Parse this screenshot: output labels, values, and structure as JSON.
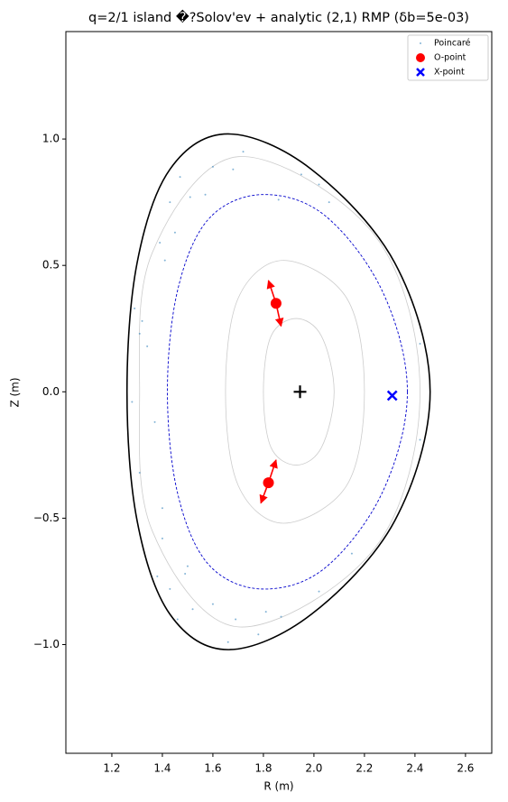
{
  "chart_data": {
    "type": "scatter",
    "title": "q=2/1 island �?Solov'ev + analytic (2,1) RMP  (δb=5e-03)",
    "x_label": "R (m)",
    "y_label": "Z (m)",
    "xlim": [
      1.018,
      2.704
    ],
    "ylim": [
      -1.43,
      1.425
    ],
    "xticks": [
      1.2,
      1.4,
      1.6,
      1.8,
      {
        "value": 2.0,
        "label": "2.0"
      },
      2.2,
      2.4,
      2.6
    ],
    "yticks": [
      {
        "value": -1.0,
        "label": "−1.0"
      },
      {
        "value": -0.5,
        "label": "−0.5"
      },
      {
        "value": 0.0,
        "label": "0.0"
      },
      0.5,
      {
        "value": 1.0,
        "label": "1.0"
      }
    ],
    "legend": "upper right",
    "boundary": {
      "color": "#000000",
      "x": [
        2.46,
        2.32,
        1.99,
        1.66,
        1.43,
        1.3,
        1.26,
        1.3,
        1.43,
        1.66,
        1.99,
        2.32
      ],
      "y": [
        0,
        0.51,
        0.88,
        1.02,
        0.88,
        0.51,
        0,
        -0.51,
        -0.88,
        -1.02,
        -0.88,
        -0.51
      ]
    },
    "q2_surface": {
      "color": "#0000cc",
      "x": [
        2.37,
        2.27,
        2.04,
        1.79,
        1.58,
        1.46,
        1.42,
        1.46,
        1.58,
        1.79,
        2.04,
        2.27
      ],
      "y": [
        0,
        0.4,
        0.7,
        0.78,
        0.68,
        0.4,
        0,
        -0.4,
        -0.68,
        -0.78,
        -0.7,
        -0.4
      ]
    },
    "contours": {
      "color": "#cccccc",
      "lines": [
        {
          "x": [
            2.08,
            2.03,
            1.93,
            1.83,
            1.8,
            1.83,
            1.93,
            2.03
          ],
          "y": [
            0,
            0.22,
            0.29,
            0.22,
            0,
            -0.22,
            -0.29,
            -0.22
          ]
        },
        {
          "x": [
            2.2,
            2.13,
            1.88,
            1.7,
            1.65,
            1.7,
            1.88,
            2.13
          ],
          "y": [
            0,
            0.37,
            0.52,
            0.37,
            0,
            -0.37,
            -0.52,
            -0.37
          ]
        },
        {
          "x": [
            2.42,
            2.24,
            1.7,
            1.36,
            1.31,
            1.36,
            1.7,
            2.24
          ],
          "y": [
            0,
            0.62,
            0.93,
            0.55,
            0,
            -0.55,
            -0.93,
            -0.62
          ]
        }
      ]
    },
    "series": [
      {
        "name": "Poincaré",
        "color": "#1f77b4",
        "x": [
          1.72,
          1.6,
          1.68,
          1.47,
          1.43,
          1.51,
          1.57,
          1.39,
          1.45,
          1.41,
          1.29,
          1.31,
          1.32,
          1.34,
          1.28,
          1.37,
          1.31,
          1.4,
          1.4,
          1.38,
          1.5,
          1.49,
          1.43,
          1.52,
          1.46,
          1.6,
          1.69,
          1.66,
          1.78,
          1.81,
          1.87,
          2.02,
          2.15,
          2.42,
          2.42,
          2.02,
          1.95,
          2.06,
          1.86
        ],
        "y": [
          0.95,
          0.89,
          0.88,
          0.85,
          0.75,
          0.77,
          0.78,
          0.59,
          0.63,
          0.52,
          0.33,
          0.23,
          0.28,
          0.18,
          -0.04,
          -0.12,
          -0.32,
          -0.46,
          -0.58,
          -0.73,
          -0.69,
          -0.72,
          -0.78,
          -0.86,
          -0.9,
          -0.84,
          -0.9,
          -0.99,
          -0.96,
          -0.87,
          -0.89,
          -0.79,
          -0.64,
          -0.19,
          0.19,
          0.82,
          0.86,
          0.75,
          0.76
        ]
      },
      {
        "name": "O-point",
        "color": "#ff0000",
        "x": [
          1.85,
          1.82
        ],
        "y": [
          0.35,
          -0.36
        ]
      },
      {
        "name": "X-point",
        "color": "#0000ff",
        "x": [
          2.31
        ],
        "y": [
          -0.015
        ]
      }
    ],
    "axis_marker": {
      "x": 1.945,
      "y": 0,
      "color": "#000000"
    },
    "arrows": {
      "color": "#ff0000",
      "items": [
        {
          "from": [
            1.85,
            0.35
          ],
          "to": [
            1.82,
            0.44
          ]
        },
        {
          "from": [
            1.85,
            0.35
          ],
          "to": [
            1.87,
            0.26
          ]
        },
        {
          "from": [
            1.82,
            -0.36
          ],
          "to": [
            1.85,
            -0.27
          ]
        },
        {
          "from": [
            1.82,
            -0.36
          ],
          "to": [
            1.79,
            -0.44
          ]
        }
      ]
    }
  }
}
